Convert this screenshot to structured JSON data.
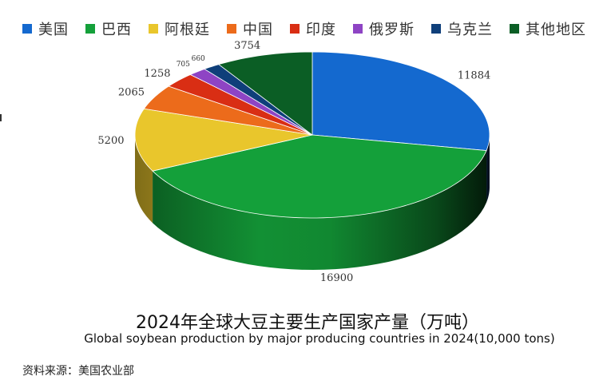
{
  "chart_data": {
    "type": "pie",
    "title": "2024年全球大豆主要生产国家产量（万吨）",
    "subtitle": "Global soybean production  by major producing countries in 2024(10,000 tons)",
    "source": "资料来源：美国农业部",
    "legend_position": "top",
    "categories": [
      "美国",
      "巴西",
      "阿根廷",
      "中国",
      "印度",
      "俄罗斯",
      "乌克兰",
      "其他地区"
    ],
    "values": [
      11884,
      16900,
      5200,
      2065,
      1258,
      705,
      660,
      3754
    ],
    "colors": [
      "#1469cf",
      "#14a03a",
      "#e9c62c",
      "#ec6b1b",
      "#d92e14",
      "#8e44c4",
      "#0f3f7a",
      "#0b5e25"
    ]
  }
}
